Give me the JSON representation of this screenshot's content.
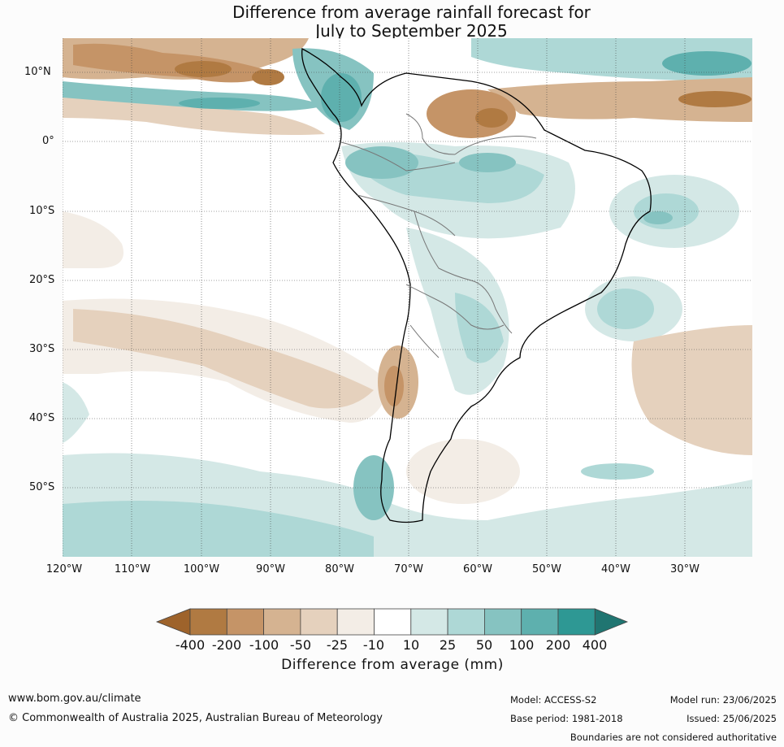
{
  "title_line1": "Difference from average rainfall forecast for",
  "title_line2": "July to September 2025",
  "latitude_labels": [
    "10°N",
    "0°",
    "10°S",
    "20°S",
    "30°S",
    "40°S",
    "50°S"
  ],
  "longitude_labels": [
    "120°W",
    "110°W",
    "100°W",
    "90°W",
    "80°W",
    "70°W",
    "60°W",
    "50°W",
    "40°W",
    "30°W"
  ],
  "colorbar": {
    "ticks": [
      "-400",
      "-200",
      "-100",
      "-50",
      "-25",
      "-10",
      "10",
      "25",
      "50",
      "100",
      "200",
      "400"
    ],
    "colors": [
      "#9e632b",
      "#b07a42",
      "#c59467",
      "#d5b391",
      "#e5d1bd",
      "#f3ede6",
      "#ffffff",
      "#d4e8e6",
      "#aed8d6",
      "#86c3c1",
      "#5eb0ae",
      "#2e9894",
      "#207571"
    ],
    "label": "Difference from average (mm)"
  },
  "footer": {
    "website": "www.bom.gov.au/climate",
    "copyright": "© Commonwealth of Australia 2025, Australian Bureau of Meteorology",
    "model": "Model: ACCESS-S2",
    "base_period": "Base period: 1981-2018",
    "model_run": "Model run: 23/06/2025",
    "issued": "Issued: 25/06/2025",
    "disclaimer": "Boundaries are not considered authoritative"
  }
}
